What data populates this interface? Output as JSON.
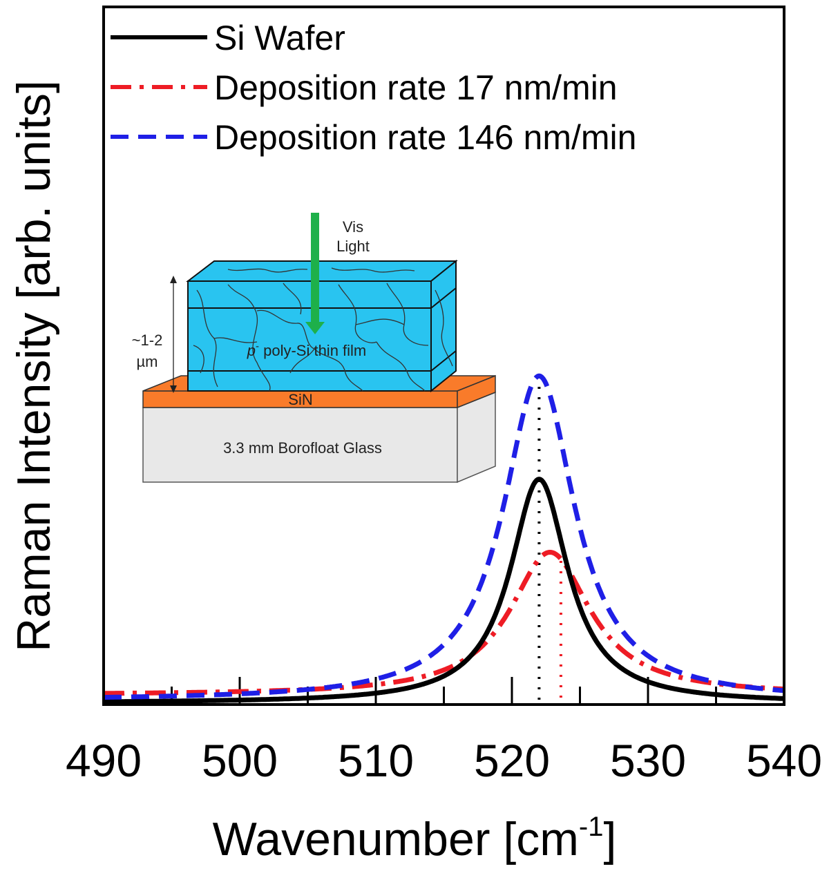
{
  "chart_data": {
    "type": "line",
    "title": "",
    "xlabel": "Wavenumber [cm",
    "xlabel_superscript": "-1",
    "xlabel_suffix": "]",
    "ylabel": "Raman Intensity [arb. units]",
    "xlim": [
      490,
      540
    ],
    "ylim": [
      0,
      1
    ],
    "xticks": [
      490,
      500,
      510,
      520,
      530,
      540
    ],
    "xtick_labels": [
      "490",
      "500",
      "510",
      "520",
      "530",
      "540"
    ],
    "legend_position": "top-left",
    "series": [
      {
        "name": "Si Wafer",
        "color": "#000000",
        "style": "solid",
        "center": 522.0,
        "hwhm": 2.6,
        "amplitude": 0.69,
        "baseline": 0.0
      },
      {
        "name": "Deposition rate 17 nm/min",
        "color": "#ee1c25",
        "style": "dash-dot",
        "center": 522.8,
        "hwhm": 3.6,
        "amplitude": 0.44,
        "baseline": 0.025
      },
      {
        "name": "Deposition rate 146 nm/min",
        "color": "#1f1fe6",
        "style": "dashed",
        "center": 522.0,
        "hwhm": 3.2,
        "amplitude": 1.0,
        "baseline": 0.008
      }
    ],
    "reference_lines": [
      {
        "x": 522.0,
        "color": "#000000",
        "style": "dotted"
      },
      {
        "x": 523.6,
        "color": "#ee1c25",
        "style": "dotted"
      }
    ]
  },
  "inset": {
    "light_label_line1": "Vis",
    "light_label_line2": "Light",
    "thickness_label_line1": "~1-2",
    "thickness_label_line2": "µm",
    "film_label_prefix": "p",
    "film_label_superscript": "-",
    "film_label_suffix": " poly-Si thin film",
    "sin_label": "SiN",
    "glass_label": "3.3 mm Borofloat Glass",
    "film_color": "#29c4f0",
    "sin_color": "#f97b2a",
    "glass_color": "#e8e8e8",
    "arrow_color": "#1eb04a"
  }
}
